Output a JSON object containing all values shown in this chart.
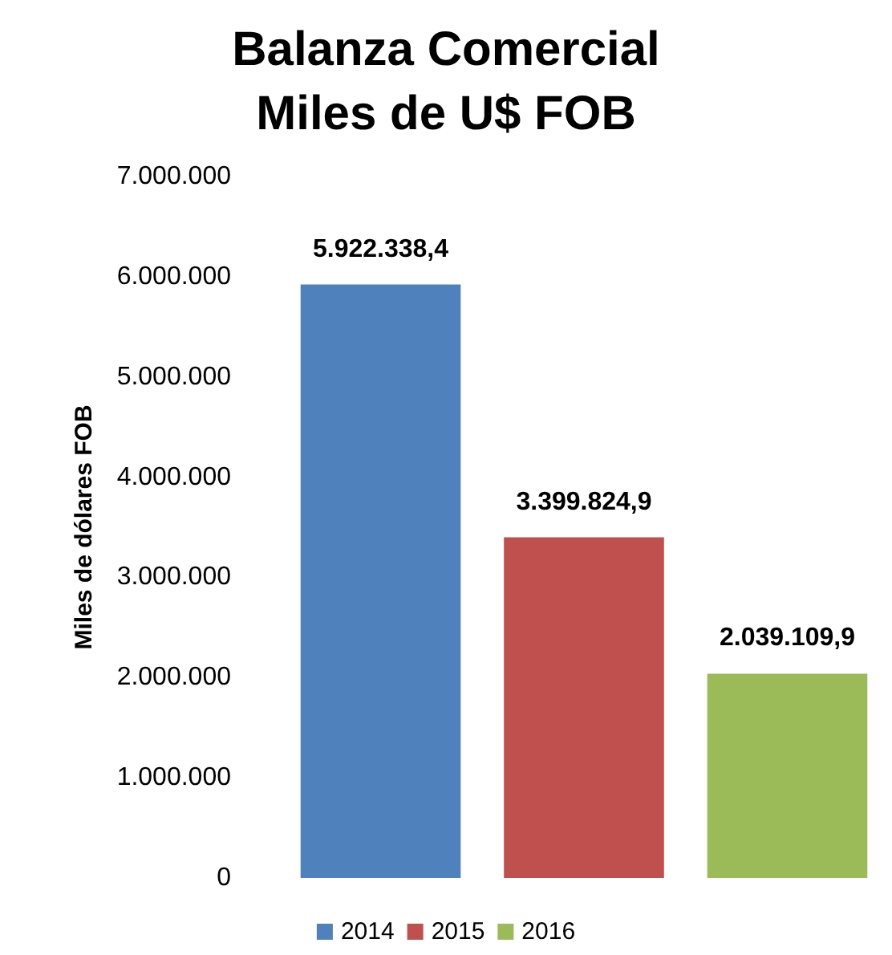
{
  "chart_data": {
    "type": "bar",
    "title": "Balanza Comercial\nMiles de U$ FOB",
    "ylabel": "Miles de dólares FOB",
    "categories": [
      null
    ],
    "series": [
      {
        "name": "2014",
        "color": "#4f81bd",
        "values": [
          5922338.4
        ],
        "value_labels": [
          "5.922.338,4"
        ]
      },
      {
        "name": "2015",
        "color": "#c0504d",
        "values": [
          3399824.9
        ],
        "value_labels": [
          "3.399.824,9"
        ]
      },
      {
        "name": "2016",
        "color": "#9bbb59",
        "values": [
          2039109.9
        ],
        "value_labels": [
          "2.039.109,9"
        ]
      }
    ],
    "ylim": [
      0,
      7000000
    ],
    "yticks": [
      {
        "value": 0,
        "label": "0"
      },
      {
        "value": 1000000,
        "label": "1.000.000"
      },
      {
        "value": 2000000,
        "label": "2.000.000"
      },
      {
        "value": 3000000,
        "label": "3.000.000"
      },
      {
        "value": 4000000,
        "label": "4.000.000"
      },
      {
        "value": 5000000,
        "label": "5.000.000"
      },
      {
        "value": 6000000,
        "label": "6.000.000"
      },
      {
        "value": 7000000,
        "label": "7.000.000"
      }
    ],
    "grid": false,
    "legend": "bottom"
  }
}
